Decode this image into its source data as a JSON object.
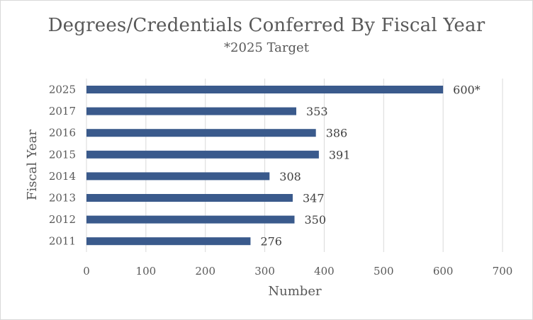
{
  "chart_data": {
    "type": "bar",
    "orientation": "horizontal",
    "title": "Degrees/Credentials Conferred By Fiscal Year",
    "subtitle": "*2025 Target",
    "xlabel": "Number",
    "ylabel": "Fiscal Year",
    "xlim": [
      0,
      700
    ],
    "x_ticks": [
      0,
      100,
      200,
      300,
      400,
      500,
      600,
      700
    ],
    "grid": "vertical",
    "legend": "none",
    "bar_color": "#3a5a8c",
    "categories": [
      "2025",
      "2017",
      "2016",
      "2015",
      "2014",
      "2013",
      "2012",
      "2011"
    ],
    "values": [
      600,
      353,
      386,
      391,
      308,
      347,
      350,
      276
    ],
    "data_labels": [
      "600*",
      "353",
      "386",
      "391",
      "308",
      "347",
      "350",
      "276"
    ]
  }
}
